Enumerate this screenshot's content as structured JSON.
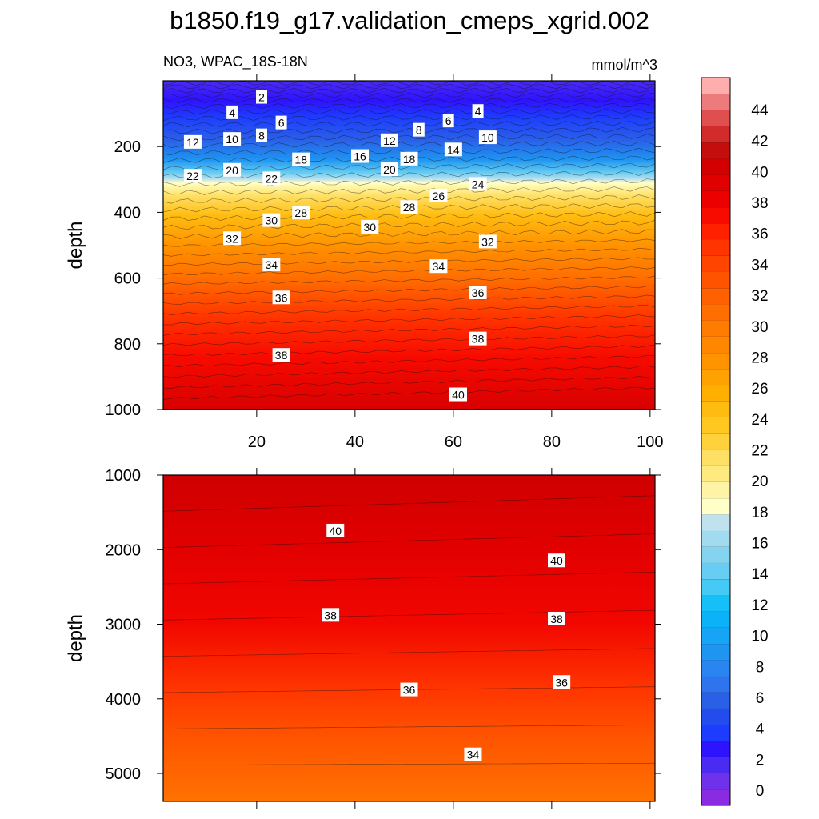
{
  "title": "b1850.f19_g17.validation_cmeps_xgrid.002",
  "subtitle_left": "NO3, WPAC_18S-18N",
  "subtitle_right": "mmol/m^3",
  "chart_data": [
    {
      "type": "heatmap",
      "name": "upper",
      "ylabel": "depth",
      "xlim": [
        1,
        101
      ],
      "ylim": [
        1000,
        0
      ],
      "x_ticks": [
        "20",
        "40",
        "60",
        "80",
        "100"
      ],
      "y_ticks": [
        "200",
        "400",
        "600",
        "800",
        "1000"
      ],
      "contour_labels": [
        {
          "text": "2",
          "x": 21,
          "y": 50
        },
        {
          "text": "4",
          "x": 15,
          "y": 97
        },
        {
          "text": "4",
          "x": 65,
          "y": 93
        },
        {
          "text": "6",
          "x": 25,
          "y": 128
        },
        {
          "text": "6",
          "x": 59,
          "y": 122
        },
        {
          "text": "8",
          "x": 21,
          "y": 167
        },
        {
          "text": "8",
          "x": 53,
          "y": 150
        },
        {
          "text": "10",
          "x": 15,
          "y": 178
        },
        {
          "text": "10",
          "x": 67,
          "y": 173
        },
        {
          "text": "12",
          "x": 7,
          "y": 187
        },
        {
          "text": "12",
          "x": 47,
          "y": 182
        },
        {
          "text": "14",
          "x": 60,
          "y": 210
        },
        {
          "text": "16",
          "x": 41,
          "y": 230
        },
        {
          "text": "18",
          "x": 29,
          "y": 240
        },
        {
          "text": "18",
          "x": 51,
          "y": 238
        },
        {
          "text": "20",
          "x": 15,
          "y": 272
        },
        {
          "text": "20",
          "x": 47,
          "y": 270
        },
        {
          "text": "22",
          "x": 7,
          "y": 290
        },
        {
          "text": "22",
          "x": 23,
          "y": 298
        },
        {
          "text": "24",
          "x": 65,
          "y": 315
        },
        {
          "text": "26",
          "x": 57,
          "y": 350
        },
        {
          "text": "28",
          "x": 29,
          "y": 402
        },
        {
          "text": "28",
          "x": 51,
          "y": 385
        },
        {
          "text": "30",
          "x": 23,
          "y": 425
        },
        {
          "text": "30",
          "x": 43,
          "y": 445
        },
        {
          "text": "32",
          "x": 15,
          "y": 480
        },
        {
          "text": "32",
          "x": 67,
          "y": 490
        },
        {
          "text": "34",
          "x": 23,
          "y": 560
        },
        {
          "text": "34",
          "x": 57,
          "y": 565
        },
        {
          "text": "36",
          "x": 25,
          "y": 660
        },
        {
          "text": "36",
          "x": 65,
          "y": 645
        },
        {
          "text": "38",
          "x": 25,
          "y": 835
        },
        {
          "text": "38",
          "x": 65,
          "y": 785
        },
        {
          "text": "40",
          "x": 61,
          "y": 955
        }
      ]
    },
    {
      "type": "heatmap",
      "name": "lower",
      "ylabel": "depth",
      "xlim": [
        1,
        101
      ],
      "ylim": [
        5375,
        1000
      ],
      "x_ticks": [],
      "y_ticks": [
        "1000",
        "2000",
        "3000",
        "4000",
        "5000"
      ],
      "contour_labels": [
        {
          "text": "40",
          "x": 36,
          "y": 1750
        },
        {
          "text": "40",
          "x": 81,
          "y": 2150
        },
        {
          "text": "38",
          "x": 35,
          "y": 2880
        },
        {
          "text": "38",
          "x": 81,
          "y": 2930
        },
        {
          "text": "36",
          "x": 51,
          "y": 3880
        },
        {
          "text": "36",
          "x": 82,
          "y": 3780
        },
        {
          "text": "34",
          "x": 64,
          "y": 4750
        }
      ]
    }
  ],
  "colorbar": {
    "labels": [
      "0",
      "2",
      "4",
      "6",
      "8",
      "10",
      "12",
      "14",
      "16",
      "18",
      "20",
      "22",
      "24",
      "26",
      "28",
      "30",
      "32",
      "34",
      "36",
      "38",
      "40",
      "42",
      "44"
    ],
    "colors": [
      "#8a2be2",
      "#6f32ea",
      "#4a2bf2",
      "#2e13ff",
      "#1e3cff",
      "#234cee",
      "#2a60e8",
      "#2e74ef",
      "#2986f0",
      "#1f95f2",
      "#16a4f6",
      "#0cb2f8",
      "#15c0f8",
      "#45c9f5",
      "#67cdf2",
      "#84d3ef",
      "#a2dbef",
      "#c0e2ee",
      "#ffffc7",
      "#fff3a6",
      "#ffea80",
      "#ffe064",
      "#ffd23c",
      "#ffc71f",
      "#ffbc10",
      "#ffaf00",
      "#ffa100",
      "#ff9300",
      "#ff8700",
      "#ff7c00",
      "#ff6e00",
      "#ff6100",
      "#ff5300",
      "#ff4400",
      "#ff3400",
      "#ff2000",
      "#f70b00",
      "#ec0000",
      "#e00000",
      "#d20000",
      "#c40d0d",
      "#d22b2b",
      "#e04f4f",
      "#ee7b7b",
      "#ffaeae"
    ]
  }
}
